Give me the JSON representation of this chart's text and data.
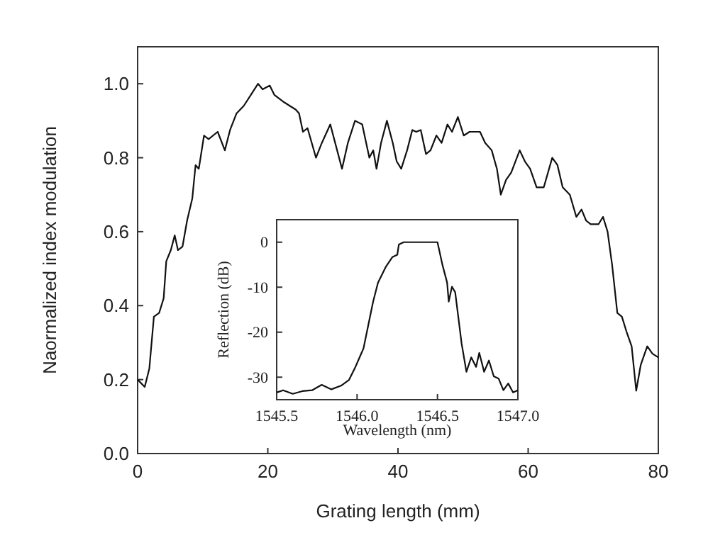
{
  "chart_data": [
    {
      "type": "line",
      "xlabel": "Grating length (mm)",
      "ylabel": "Naormalized index modulation",
      "xlim": [
        0,
        80
      ],
      "ylim": [
        0,
        1.1
      ],
      "xticks": [
        0,
        20,
        40,
        60,
        80
      ],
      "yticks": [
        {
          "value": 0,
          "label": "0.0"
        },
        {
          "value": 0.2,
          "label": "0.2"
        },
        {
          "value": 0.4,
          "label": "0.4"
        },
        {
          "value": 0.6,
          "label": "0.6"
        },
        {
          "value": 0.8,
          "label": "0.8"
        },
        {
          "value": 1.0,
          "label": "1.0"
        }
      ],
      "grid": false,
      "series": [
        {
          "color": "#111111",
          "x": [
            0,
            1.09,
            1.8,
            2.5,
            3.3,
            4.0,
            4.4,
            5.1,
            5.7,
            6.2,
            6.9,
            7.6,
            8.4,
            8.9,
            9.4,
            10.2,
            10.9,
            12.3,
            13.4,
            14.2,
            15.2,
            16.3,
            17.4,
            18.5,
            19.2,
            20.3,
            21.0,
            22.5,
            24.3,
            24.8,
            25.4,
            26.1,
            27.4,
            28.3,
            29.6,
            30.5,
            31.4,
            32.3,
            33.4,
            34.5,
            35.6,
            36.2,
            36.7,
            37.4,
            38.3,
            39.2,
            39.8,
            40.5,
            41.4,
            42.2,
            42.8,
            43.5,
            44.3,
            45.0,
            45.9,
            46.7,
            47.6,
            48.3,
            49.2,
            50.1,
            51.0,
            51.9,
            52.6,
            53.4,
            54.4,
            55.2,
            55.8,
            56.6,
            57.4,
            58.7,
            59.5,
            60.3,
            61.3,
            62.4,
            63.7,
            64.5,
            65.3,
            66.4,
            67.4,
            68.2,
            68.9,
            69.6,
            70.8,
            71.5,
            72.2,
            72.9,
            73.7,
            74.4,
            75.1,
            75.9,
            76.6,
            77.3,
            78.3,
            79.1,
            80
          ],
          "values": [
            0.2,
            0.18,
            0.23,
            0.37,
            0.38,
            0.42,
            0.52,
            0.55,
            0.59,
            0.55,
            0.56,
            0.63,
            0.69,
            0.78,
            0.77,
            0.86,
            0.85,
            0.87,
            0.82,
            0.875,
            0.92,
            0.94,
            0.97,
            1.0,
            0.985,
            0.995,
            0.97,
            0.95,
            0.93,
            0.92,
            0.87,
            0.88,
            0.8,
            0.84,
            0.89,
            0.83,
            0.77,
            0.84,
            0.9,
            0.89,
            0.8,
            0.82,
            0.77,
            0.84,
            0.9,
            0.84,
            0.79,
            0.77,
            0.82,
            0.875,
            0.87,
            0.875,
            0.81,
            0.82,
            0.86,
            0.84,
            0.89,
            0.87,
            0.91,
            0.86,
            0.87,
            0.87,
            0.87,
            0.84,
            0.82,
            0.77,
            0.7,
            0.74,
            0.76,
            0.82,
            0.79,
            0.77,
            0.72,
            0.72,
            0.8,
            0.78,
            0.72,
            0.7,
            0.64,
            0.66,
            0.63,
            0.62,
            0.62,
            0.64,
            0.6,
            0.51,
            0.38,
            0.37,
            0.33,
            0.29,
            0.17,
            0.24,
            0.29,
            0.27,
            0.26
          ]
        }
      ]
    },
    {
      "type": "line",
      "xlabel": "Wavelength (nm)",
      "ylabel": "Reflection (dB)",
      "xlim": [
        1545.5,
        1547.0
      ],
      "ylim": [
        -35,
        5
      ],
      "xticks": [
        {
          "value": 1545.5,
          "label": "1545.5"
        },
        {
          "value": 1546.0,
          "label": "1546.0"
        },
        {
          "value": 1546.5,
          "label": "1546.5"
        },
        {
          "value": 1547.0,
          "label": "1547.0"
        }
      ],
      "yticks": [
        -30,
        -20,
        -10,
        0
      ],
      "grid": false,
      "series": [
        {
          "color": "#111111",
          "x": [
            1545.5,
            1545.54,
            1545.6,
            1545.66,
            1545.72,
            1545.78,
            1545.84,
            1545.9,
            1545.95,
            1545.99,
            1546.04,
            1546.07,
            1546.1,
            1546.13,
            1546.18,
            1546.22,
            1546.25,
            1546.26,
            1546.29,
            1546.5,
            1546.53,
            1546.56,
            1546.57,
            1546.59,
            1546.61,
            1546.65,
            1546.68,
            1546.71,
            1546.74,
            1546.76,
            1546.79,
            1546.82,
            1546.85,
            1546.88,
            1546.91,
            1546.94,
            1546.97,
            1547.0
          ],
          "values": [
            -33.4,
            -32.9,
            -33.7,
            -33.1,
            -32.9,
            -31.7,
            -32.7,
            -31.9,
            -30.6,
            -27.7,
            -23.6,
            -18.4,
            -13.2,
            -9.0,
            -5.4,
            -3.3,
            -2.8,
            -0.5,
            0,
            0,
            -4.9,
            -9.0,
            -13.2,
            -9.9,
            -11.1,
            -22.5,
            -28.8,
            -25.6,
            -27.7,
            -24.6,
            -28.8,
            -26.3,
            -29.8,
            -30.3,
            -32.9,
            -31.4,
            -33.4,
            -32.9
          ]
        }
      ]
    }
  ]
}
